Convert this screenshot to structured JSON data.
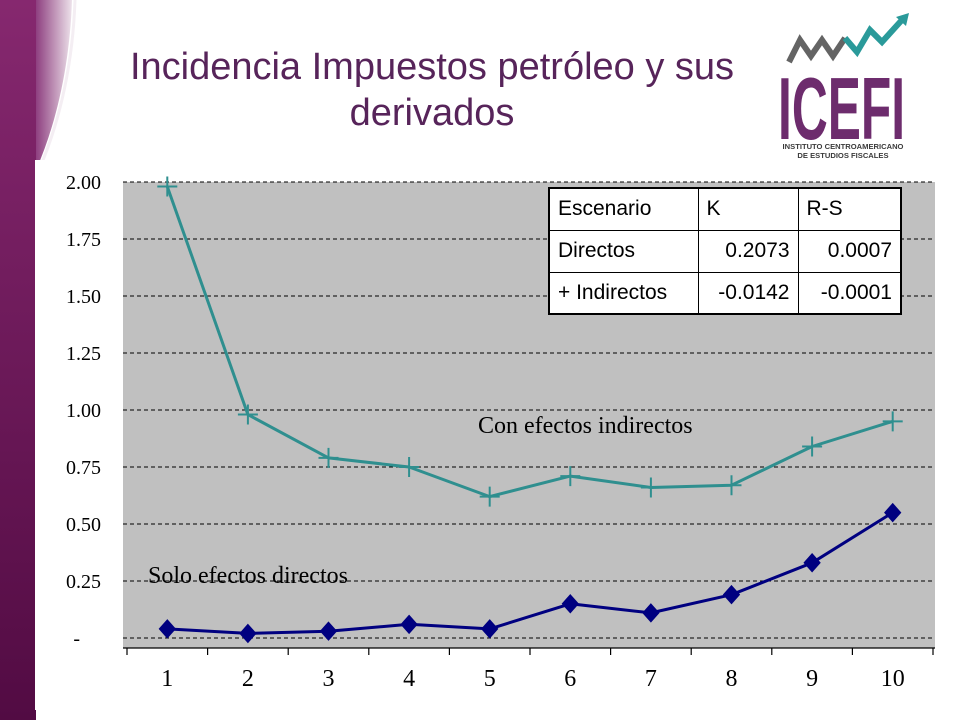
{
  "slide": {
    "title": "Incidencia Impuestos petróleo y sus derivados",
    "title_color": "#57245a"
  },
  "theme": {
    "band_top": "#86286f",
    "band_bottom": "#520b43"
  },
  "logo": {
    "name": "ICEFI",
    "subtitle": "INSTITUTO CENTROAMERICANO DE ESTUDIOS FISCALES",
    "mark_icon": "zigzag-arrow-up-right-icon",
    "wordmark_color": "#6d2c6d",
    "mark_gray": "#646464",
    "mark_teal": "#2a9a9a"
  },
  "results_table": {
    "headers": [
      "Escenario",
      "K",
      "R-S"
    ],
    "rows": [
      [
        "Directos",
        "0.2073",
        "0.0007"
      ],
      [
        "+ Indirectos",
        "-0.0142",
        "-0.0001"
      ]
    ]
  },
  "chart_data": {
    "type": "line",
    "categories": [
      "1",
      "2",
      "3",
      "4",
      "5",
      "6",
      "7",
      "8",
      "9",
      "10"
    ],
    "series": [
      {
        "name": "Con efectos indirectos",
        "values": [
          1.98,
          0.98,
          0.79,
          0.75,
          0.62,
          0.71,
          0.66,
          0.67,
          0.84,
          0.95
        ],
        "color": "#2f8f8f",
        "marker": "plus"
      },
      {
        "name": "Solo efectos directos",
        "values": [
          0.04,
          0.02,
          0.03,
          0.06,
          0.04,
          0.15,
          0.11,
          0.19,
          0.33,
          0.55
        ],
        "color": "#000080",
        "marker": "diamond"
      }
    ],
    "ylim": [
      0,
      2
    ],
    "y_ticks": [
      {
        "value": 0,
        "label": "-"
      },
      {
        "value": 0.25,
        "label": "0.25"
      },
      {
        "value": 0.5,
        "label": "0.50"
      },
      {
        "value": 0.75,
        "label": "0.75"
      },
      {
        "value": 1,
        "label": "1.00"
      },
      {
        "value": 1.25,
        "label": "1.25"
      },
      {
        "value": 1.5,
        "label": "1.50"
      },
      {
        "value": 1.75,
        "label": "1.75"
      },
      {
        "value": 2,
        "label": "2.00"
      }
    ],
    "grid": true,
    "grid_style": "dashed",
    "plot_background": "#c0c0c0"
  }
}
